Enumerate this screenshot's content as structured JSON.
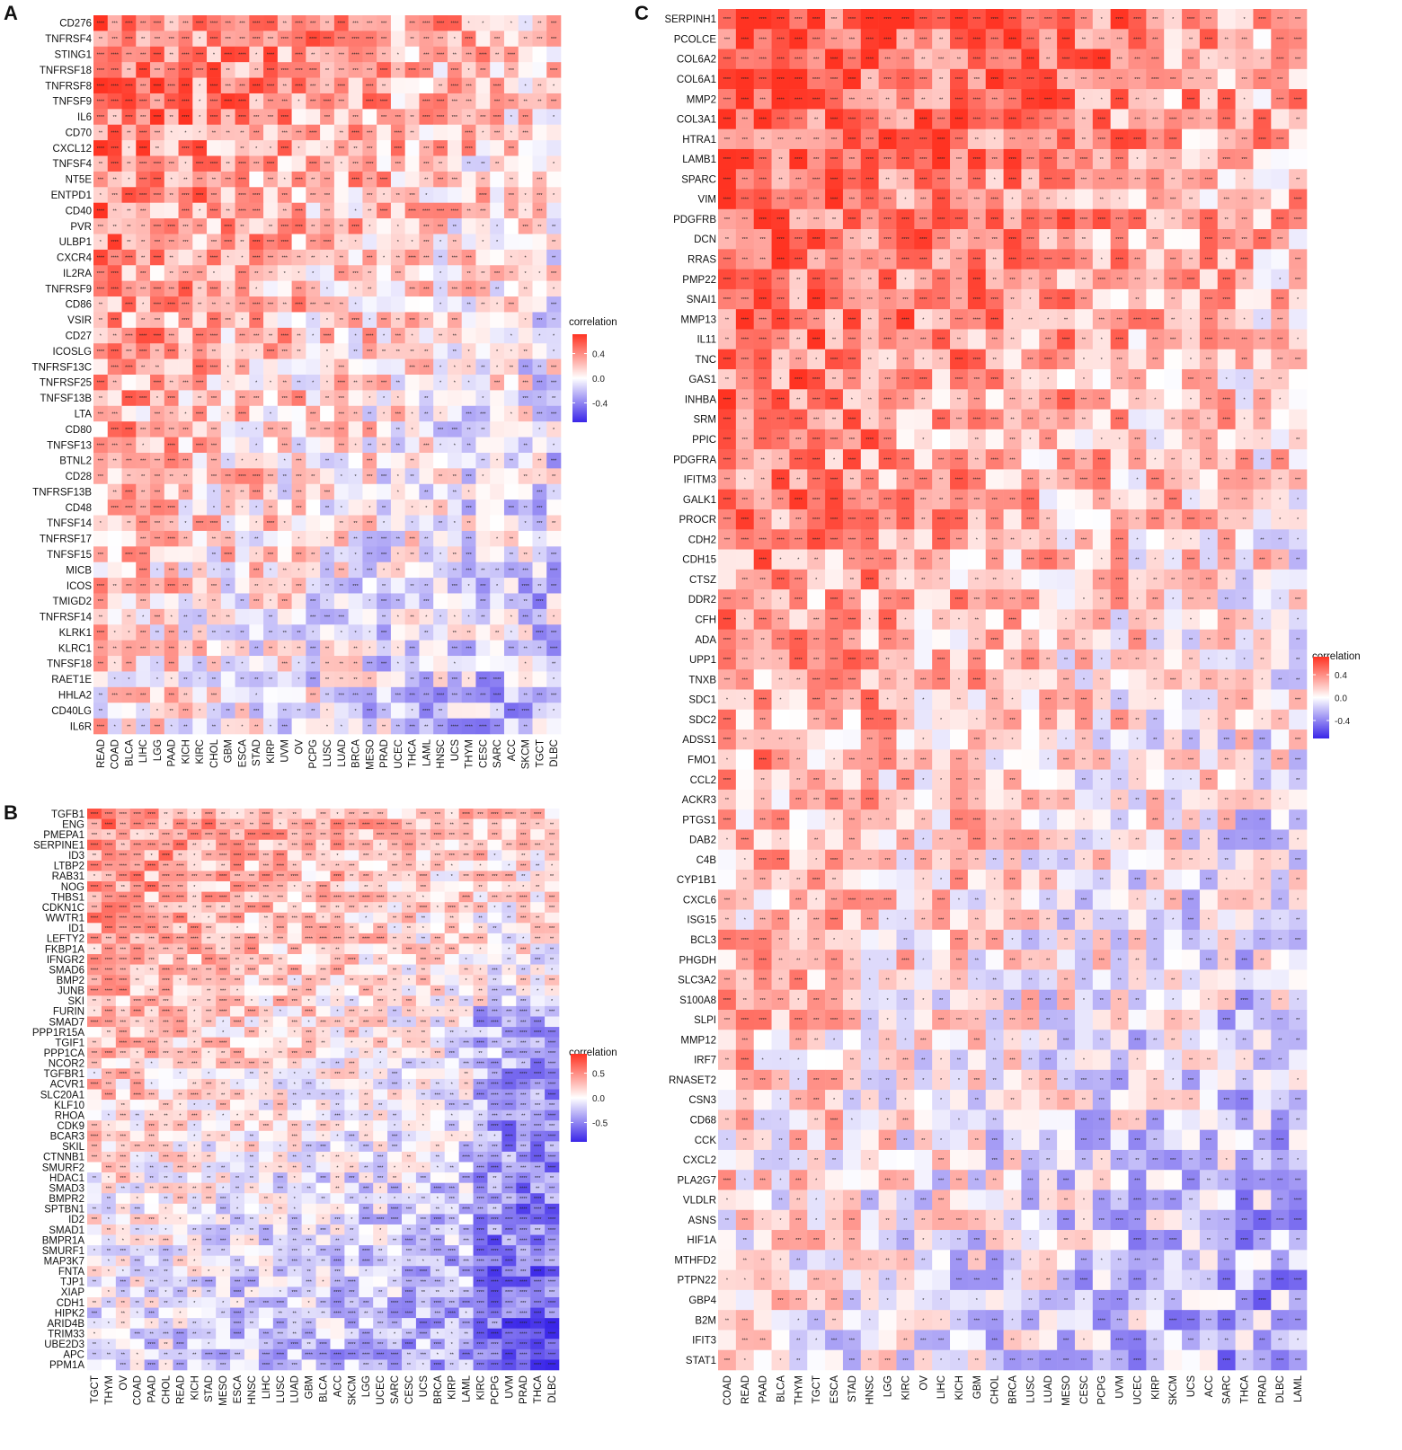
{
  "chart_data": [
    {
      "panel": "A",
      "type": "heatmap",
      "genes": [
        "CD276",
        "TNFRSF4",
        "STING1",
        "TNFRSF18",
        "TNFRSF8",
        "TNFSF9",
        "IL6",
        "CD70",
        "CXCL12",
        "TNFSF4",
        "NT5E",
        "ENTPD1",
        "CD40",
        "PVR",
        "ULBP1",
        "CXCR4",
        "IL2RA",
        "TNFRSF9",
        "CD86",
        "VSIR",
        "CD27",
        "ICOSLG",
        "TNFRSF13C",
        "TNFRSF25",
        "TNFSF13B",
        "LTA",
        "CD80",
        "TNFSF13",
        "BTNL2",
        "CD28",
        "TNFRSF13B",
        "CD48",
        "TNFSF14",
        "TNFRSF17",
        "TNFSF15",
        "MICB",
        "ICOS",
        "TMIGD2",
        "TNFRSF14",
        "KLRK1",
        "KLRC1",
        "TNFSF18",
        "RAET1E",
        "HHLA2",
        "CD40LG",
        "IL6R"
      ],
      "cancers": [
        "READ",
        "COAD",
        "BLCA",
        "LIHC",
        "LGG",
        "PAAD",
        "KICH",
        "KIRC",
        "CHOL",
        "GBM",
        "ESCA",
        "STAD",
        "KIRP",
        "UVM",
        "OV",
        "PCPG",
        "LUSC",
        "LUAD",
        "BRCA",
        "MESO",
        "PRAD",
        "UCEC",
        "THCA",
        "LAML",
        "HNSC",
        "UCS",
        "THYM",
        "CESC",
        "SARC",
        "ACC",
        "SKCM",
        "TGCT",
        "DLBC"
      ],
      "legend_title": "correlation",
      "legend_ticks": [
        "0.4",
        "0.0",
        "-0.4"
      ],
      "range": [
        -0.5,
        0.5
      ]
    },
    {
      "panel": "B",
      "type": "heatmap",
      "genes": [
        "TGFB1",
        "ENG",
        "PMEPA1",
        "SERPINE1",
        "ID3",
        "LTBP2",
        "RAB31",
        "NOG",
        "THBS1",
        "CDKN1C",
        "WWTR1",
        "ID1",
        "LEFTY2",
        "FKBP1A",
        "IFNGR2",
        "SMAD6",
        "BMP2",
        "JUNB",
        "SKI",
        "FURIN",
        "SMAD7",
        "PPP1R15A",
        "TGIF1",
        "PPP1CA",
        "NCOR2",
        "TGFBR1",
        "ACVR1",
        "SLC20A1",
        "KLF10",
        "RHOA",
        "CDK9",
        "BCAR3",
        "SKIL",
        "CTNNB1",
        "SMURF2",
        "HDAC1",
        "SMAD3",
        "BMPR2",
        "SPTBN1",
        "ID2",
        "SMAD1",
        "BMPR1A",
        "SMURF1",
        "MAP3K7",
        "FNTA",
        "TJP1",
        "XIAP",
        "CDH1",
        "HIPK2",
        "ARID4B",
        "TRIM33",
        "UBE2D3",
        "APC",
        "PPM1A"
      ],
      "cancers": [
        "TGCT",
        "THYM",
        "OV",
        "COAD",
        "PAAD",
        "CHOL",
        "READ",
        "KICH",
        "STAD",
        "MESO",
        "ESCA",
        "HNSC",
        "LIHC",
        "LUSC",
        "LUAD",
        "GBM",
        "BLCA",
        "ACC",
        "SKCM",
        "LGG",
        "UCEC",
        "SARC",
        "CESC",
        "UCS",
        "BRCA",
        "KIRP",
        "LAML",
        "KIRC",
        "PCPG",
        "UVM",
        "PRAD",
        "THCA",
        "DLBC"
      ],
      "legend_title": "correlation",
      "legend_ticks": [
        "0.5",
        "0.0",
        "-0.5"
      ],
      "range": [
        -0.65,
        0.65
      ]
    },
    {
      "panel": "C",
      "type": "heatmap",
      "genes": [
        "SERPINH1",
        "PCOLCE",
        "COL6A2",
        "COL6A1",
        "MMP2",
        "COL3A1",
        "HTRA1",
        "LAMB1",
        "SPARC",
        "VIM",
        "PDGFRB",
        "DCN",
        "RRAS",
        "PMP22",
        "SNAI1",
        "MMP13",
        "IL11",
        "TNC",
        "GAS1",
        "INHBA",
        "SRM",
        "PPIC",
        "PDGFRA",
        "IFITM3",
        "GALK1",
        "PROCR",
        "CDH2",
        "CDH15",
        "CTSZ",
        "DDR2",
        "CFH",
        "ADA",
        "UPP1",
        "TNXB",
        "SDC1",
        "SDC2",
        "ADSS1",
        "FMO1",
        "CCL2",
        "ACKR3",
        "PTGS1",
        "DAB2",
        "C4B",
        "CYP1B1",
        "CXCL6",
        "ISG15",
        "BCL3",
        "PHGDH",
        "SLC3A2",
        "S100A8",
        "SLPI",
        "MMP12",
        "IRF7",
        "RNASET2",
        "CSN3",
        "CD68",
        "CCK",
        "CXCL2",
        "PLA2G7",
        "VLDLR",
        "ASNS",
        "HIF1A",
        "MTHFD2",
        "PTPN22",
        "GBP4",
        "B2M",
        "IFIT3",
        "STAT1"
      ],
      "cancers": [
        "COAD",
        "READ",
        "PAAD",
        "BLCA",
        "THYM",
        "TGCT",
        "ESCA",
        "STAD",
        "HNSC",
        "LGG",
        "KIRC",
        "OV",
        "LIHC",
        "KICH",
        "GBM",
        "CHOL",
        "BRCA",
        "LUSC",
        "LUAD",
        "MESO",
        "CESC",
        "PCPG",
        "UVM",
        "UCEC",
        "KIRP",
        "SKCM",
        "UCS",
        "ACC",
        "SARC",
        "THCA",
        "PRAD",
        "DLBC",
        "LAML"
      ],
      "legend_title": "correlation",
      "legend_ticks": [
        "0.4",
        "0.0",
        "-0.4"
      ],
      "range": [
        -0.5,
        0.5
      ]
    }
  ]
}
